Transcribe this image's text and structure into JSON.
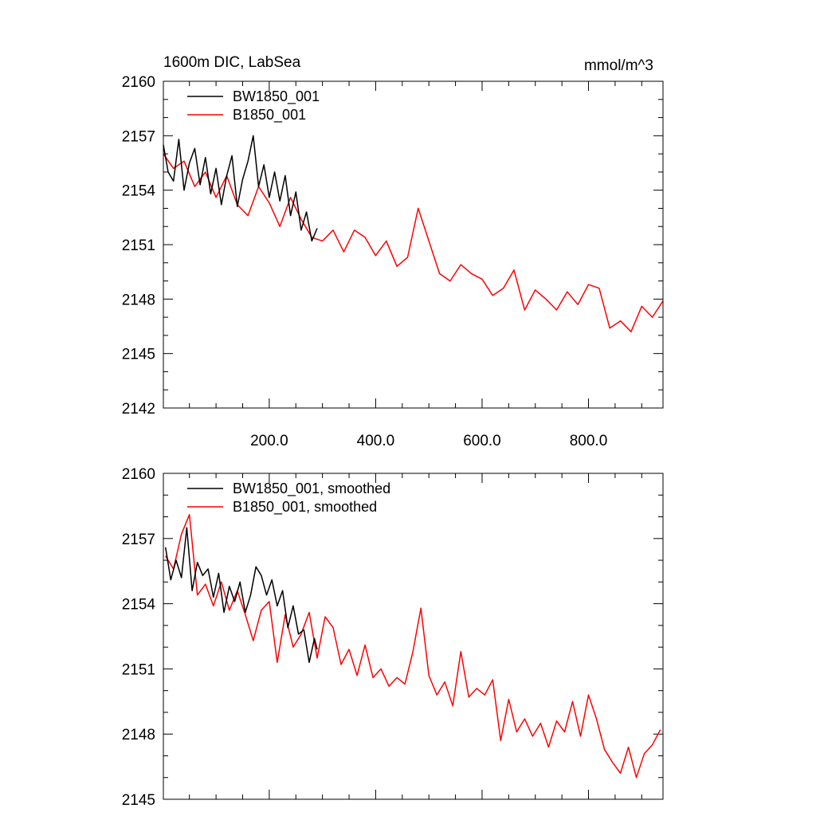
{
  "figure": {
    "title_left": "1600m DIC, LabSea",
    "title_right": "mmol/m^3"
  },
  "chart_data": [
    {
      "type": "line",
      "title": "1600m DIC, LabSea",
      "units": "mmol/m^3",
      "xlabel": "",
      "ylabel": "",
      "xlim": [
        1,
        940
      ],
      "ylim": [
        2142,
        2160
      ],
      "yticks": [
        2142,
        2145,
        2148,
        2151,
        2154,
        2157,
        2160
      ],
      "xticks": [
        200,
        400,
        600,
        800
      ],
      "xtick_labels": [
        "200.0",
        "400.0",
        "600.0",
        "800.0"
      ],
      "legend_position": "top-left",
      "series": [
        {
          "name": "BW1850_001",
          "color": "#000000",
          "x": [
            1,
            10,
            20,
            30,
            40,
            50,
            60,
            70,
            80,
            90,
            100,
            110,
            120,
            130,
            140,
            150,
            160,
            170,
            180,
            190,
            200,
            210,
            220,
            230,
            240,
            250,
            260,
            270,
            280,
            290
          ],
          "y": [
            2156.5,
            2155.0,
            2154.5,
            2156.8,
            2154.0,
            2155.5,
            2156.3,
            2154.3,
            2155.8,
            2153.8,
            2155.2,
            2153.2,
            2154.8,
            2155.9,
            2153.1,
            2154.6,
            2155.6,
            2157.0,
            2154.2,
            2155.4,
            2153.6,
            2155.0,
            2153.4,
            2154.8,
            2152.6,
            2153.9,
            2151.8,
            2152.8,
            2151.2,
            2151.9
          ]
        },
        {
          "name": "B1850_001",
          "color": "#ff0000",
          "x": [
            1,
            20,
            40,
            60,
            80,
            100,
            120,
            140,
            160,
            180,
            200,
            220,
            240,
            260,
            280,
            300,
            320,
            340,
            360,
            380,
            400,
            420,
            440,
            460,
            480,
            500,
            520,
            540,
            560,
            580,
            600,
            620,
            640,
            660,
            680,
            700,
            720,
            740,
            760,
            780,
            800,
            820,
            840,
            860,
            880,
            900,
            920,
            940
          ],
          "y": [
            2156.0,
            2155.2,
            2155.6,
            2154.2,
            2155.0,
            2153.6,
            2154.8,
            2153.2,
            2152.6,
            2154.2,
            2153.3,
            2152.0,
            2153.6,
            2152.4,
            2151.4,
            2151.2,
            2151.8,
            2150.6,
            2151.8,
            2151.4,
            2150.4,
            2151.2,
            2149.8,
            2150.3,
            2153.0,
            2151.2,
            2149.4,
            2149.0,
            2149.9,
            2149.4,
            2149.1,
            2148.2,
            2148.6,
            2149.6,
            2147.4,
            2148.5,
            2148.0,
            2147.4,
            2148.4,
            2147.7,
            2148.8,
            2148.6,
            2146.4,
            2146.8,
            2146.2,
            2147.6,
            2147.0,
            2147.9
          ]
        }
      ]
    },
    {
      "type": "line",
      "title": "",
      "xlabel": "",
      "ylabel": "",
      "xlim": [
        1,
        940
      ],
      "ylim": [
        2145,
        2160
      ],
      "yticks": [
        2145,
        2148,
        2151,
        2154,
        2157,
        2160
      ],
      "xticks": [
        200,
        400,
        600,
        800
      ],
      "xtick_labels": [],
      "legend_position": "top-left",
      "series": [
        {
          "name": "BW1850_001, smoothed",
          "color": "#000000",
          "x": [
            5,
            15,
            25,
            35,
            45,
            55,
            65,
            75,
            85,
            95,
            105,
            115,
            125,
            135,
            145,
            155,
            165,
            175,
            185,
            195,
            205,
            215,
            225,
            235,
            245,
            255,
            265,
            275,
            285,
            290
          ],
          "y": [
            2156.6,
            2155.1,
            2156.0,
            2155.2,
            2157.5,
            2154.6,
            2155.9,
            2155.3,
            2155.6,
            2154.3,
            2155.4,
            2153.6,
            2154.8,
            2154.1,
            2155.0,
            2153.6,
            2154.4,
            2155.7,
            2155.3,
            2154.4,
            2155.1,
            2153.9,
            2154.6,
            2152.9,
            2153.9,
            2152.6,
            2152.8,
            2151.3,
            2152.4,
            2151.9
          ]
        },
        {
          "name": "B1850_001, smoothed",
          "color": "#ff0000",
          "x": [
            5,
            20,
            35,
            50,
            65,
            80,
            95,
            110,
            125,
            140,
            155,
            170,
            185,
            200,
            215,
            230,
            245,
            260,
            275,
            290,
            305,
            320,
            335,
            350,
            365,
            380,
            395,
            410,
            425,
            440,
            455,
            470,
            485,
            500,
            515,
            530,
            545,
            560,
            575,
            590,
            605,
            620,
            635,
            650,
            665,
            680,
            695,
            710,
            725,
            740,
            755,
            770,
            785,
            800,
            815,
            830,
            845,
            860,
            875,
            890,
            905,
            920,
            935
          ],
          "y": [
            2156.2,
            2155.6,
            2157.2,
            2158.1,
            2154.4,
            2154.9,
            2153.9,
            2155.0,
            2153.7,
            2154.6,
            2153.5,
            2152.3,
            2153.7,
            2154.1,
            2151.3,
            2153.5,
            2152.0,
            2152.6,
            2153.6,
            2151.5,
            2153.4,
            2152.9,
            2151.2,
            2151.9,
            2150.7,
            2152.1,
            2150.6,
            2151.0,
            2150.2,
            2150.6,
            2150.3,
            2151.8,
            2153.8,
            2150.7,
            2149.8,
            2150.4,
            2149.3,
            2151.8,
            2149.7,
            2150.1,
            2149.8,
            2150.5,
            2147.7,
            2149.6,
            2148.1,
            2148.7,
            2147.9,
            2148.5,
            2147.4,
            2148.6,
            2148.1,
            2149.5,
            2147.9,
            2149.8,
            2148.7,
            2147.3,
            2146.7,
            2146.2,
            2147.4,
            2146.0,
            2147.1,
            2147.5,
            2148.2
          ]
        }
      ]
    }
  ]
}
